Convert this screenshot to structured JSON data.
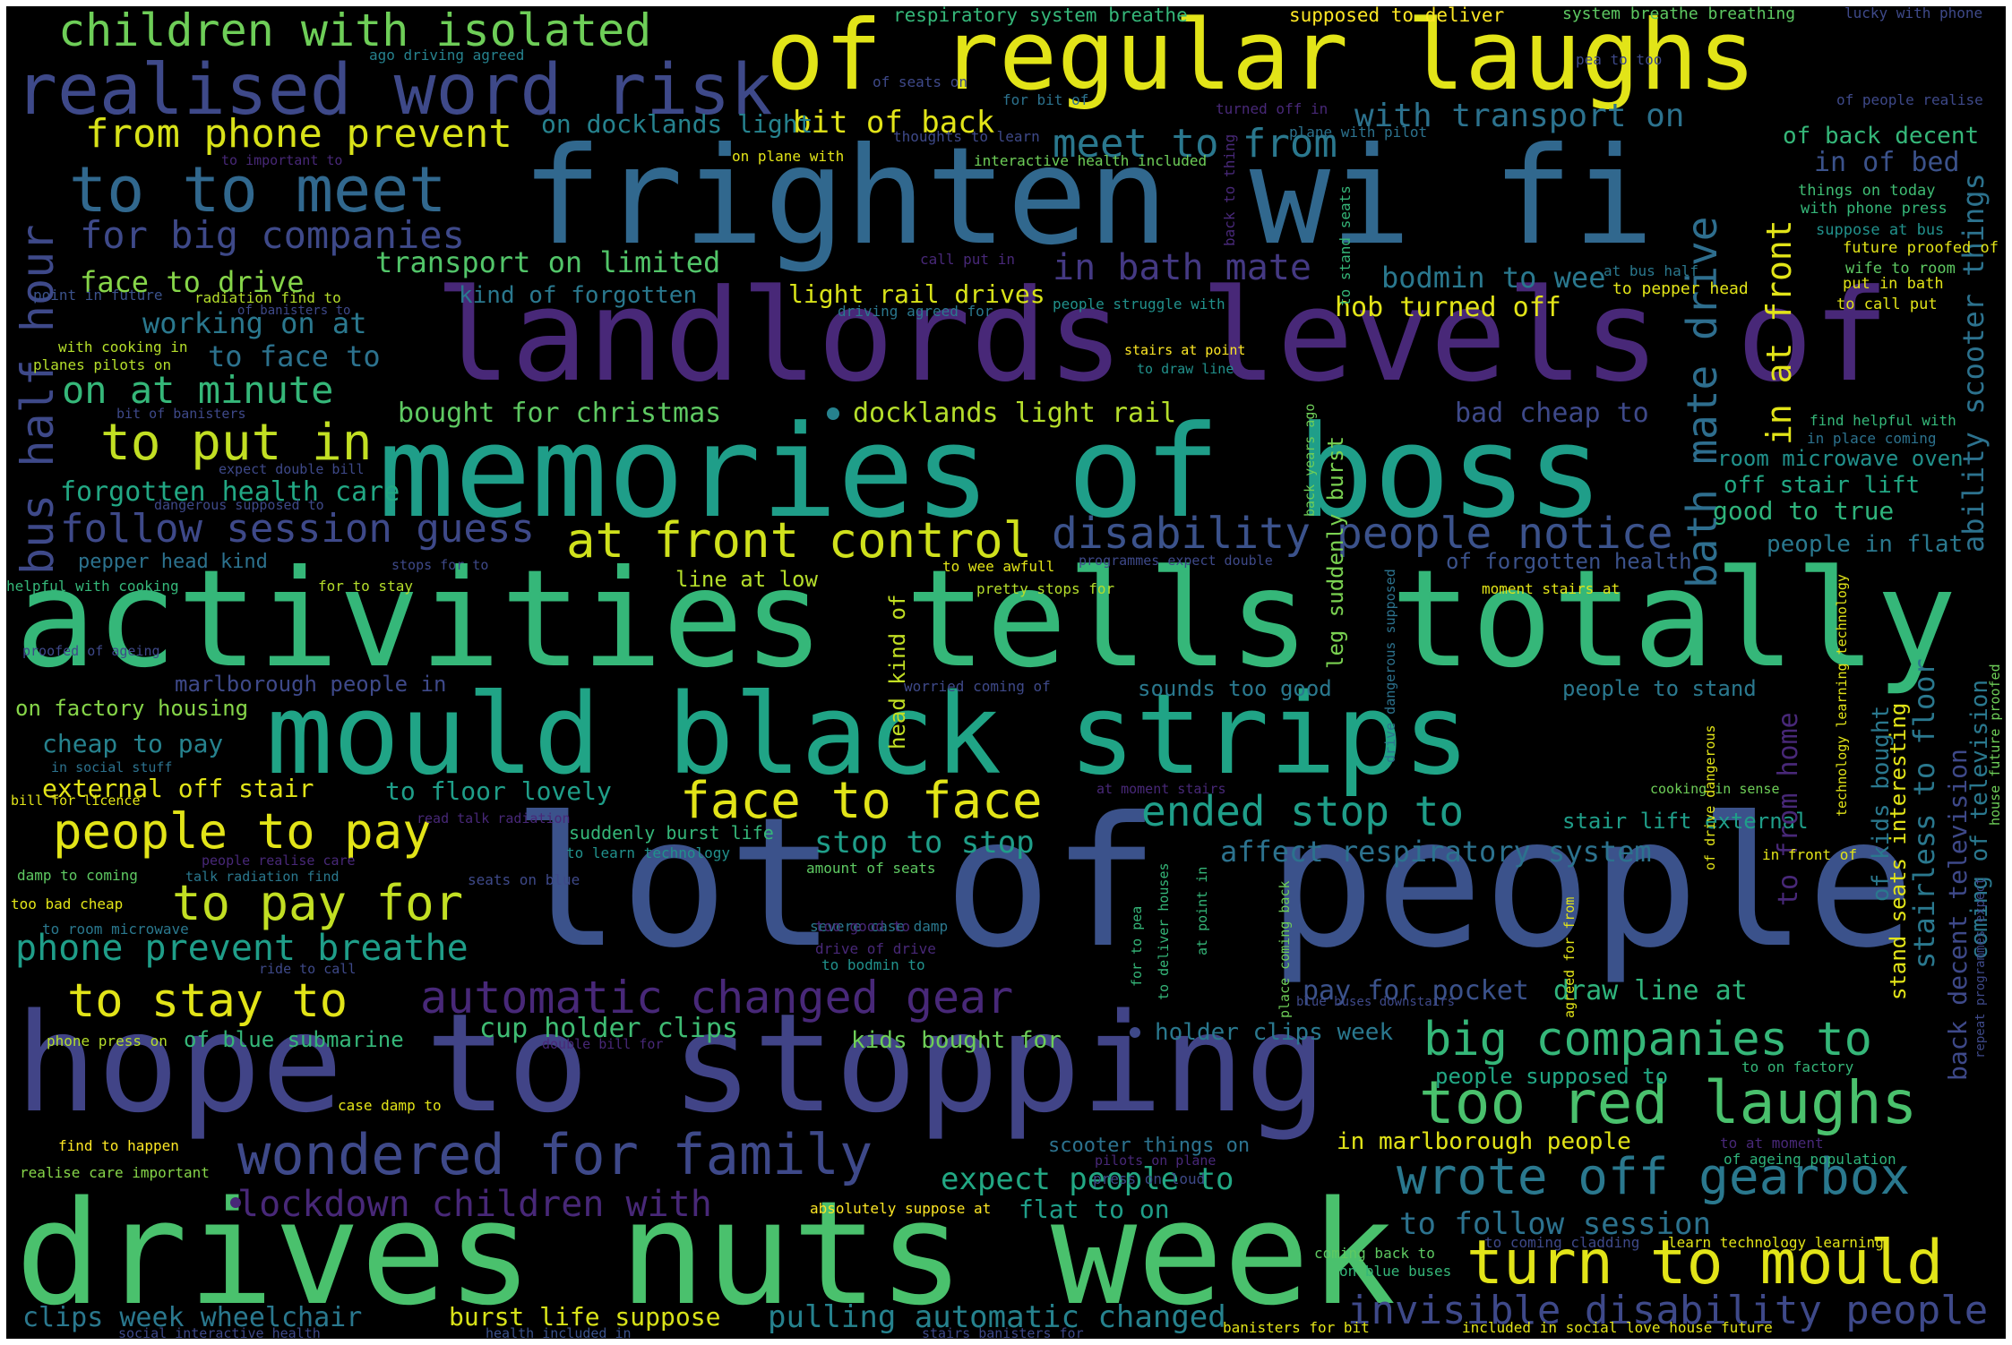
{
  "colors": {
    "background": "#000000",
    "frame": "#ffffff",
    "palette": [
      "#fde725",
      "#b5de2b",
      "#6ece58",
      "#35b779",
      "#1f9e89",
      "#26828e",
      "#31688e",
      "#3e4989",
      "#482878",
      "#440154"
    ]
  },
  "words": [
    "of regular laughs",
    "frighten wi fi",
    "landlords levels of",
    "memories of boss",
    "activities tells totally",
    "mould black strips",
    "lot of people",
    "hope to stopping",
    "drives nuts week",
    "realised word risk",
    "children with isolated",
    "to to meet",
    "from phone prevent",
    "for big companies",
    "face to drive",
    "working on at",
    "to face to",
    "on at minute",
    "to put in",
    "forgotten health care",
    "follow session guess",
    "at front control",
    "disability people notice",
    "bus half hour",
    "transport on limited",
    "kind of forgotten",
    "light rail drives",
    "in bath mate",
    "bodmin to wee",
    "hob turned off",
    "with transport on",
    "meet to from",
    "bit of back",
    "on docklands light",
    "bought for christmas",
    "docklands light rail",
    "bad cheap to",
    "bath mate drive",
    "in at front",
    "of back decent",
    "in of bed",
    "ability scooter things",
    "people in flat",
    "good to true",
    "off stair lift",
    "room microwave oven",
    "of forgotten health",
    "people to pay",
    "to pay for",
    "phone prevent breathe",
    "to stay to",
    "automatic changed gear",
    "face to face",
    "ended stop to",
    "stop to stop",
    "affect respiratory system",
    "big companies to",
    "too red laughs",
    "wrote off gearbox",
    "turn to mould",
    "invisible disability people",
    "wondered for family",
    "lockdown children with",
    "expect people to",
    "to follow session",
    "burst life suppose",
    "pulling automatic changed",
    "clips week wheelchair",
    "cup holder clips",
    "kids bought for",
    "holder clips week",
    "pay for pocket",
    "draw line at",
    "external off stair",
    "to floor lovely",
    "cheap to pay",
    "on factory housing",
    "marlborough people in",
    "sounds too good",
    "people to stand",
    "stair lift external",
    "to from home",
    "stairless to floor",
    "back decent television",
    "coming of television",
    "of kids bought",
    "stand seats interesting",
    "in marlborough people",
    "people supposed to",
    "flat to on",
    "scooter things on",
    "head kind of",
    "leg suddenly burst",
    "pepper head kind",
    "line at low",
    "of blue submarine",
    "suddenly burst life",
    "respiratory system breathe",
    "supposed to deliver",
    "system breathe breathing",
    "lucky with phone",
    "ago driving agreed",
    "pea to too",
    "of seats on",
    "for bit of",
    "turned off in",
    "of people realise",
    "to important to",
    "on plane with",
    "thoughts to learn",
    "plane with pilot",
    "interactive health included",
    "things on today",
    "with phone press",
    "suppose at bus",
    "future proofed of",
    "wife to room",
    "put in bath",
    "to call put",
    "at bus half",
    "to pepper head",
    "call put in",
    "point in future",
    "radiation find to",
    "of banisters to",
    "driving agreed for",
    "people struggle with",
    "with cooking in",
    "planes pilots on",
    "stairs at point",
    "to draw line",
    "bit of banisters",
    "find helpful with",
    "in place coming",
    "expect double bill",
    "dangerous supposed to",
    "stops for to",
    "programmes expect double",
    "to wee awfull",
    "pretty stops for",
    "moment stairs at",
    "helpful with cooking",
    "for to stay",
    "proofed of ageing",
    "worried coming of",
    "in social stuff",
    "bill for licence",
    "read talk radiation",
    "at moment stairs",
    "cooking in sense",
    "of drive dangerous",
    "technology learning technology",
    "people realise care",
    "talk radiation find",
    "to learn technology",
    "amount of seats",
    "damp to coming",
    "too bad cheap",
    "to room microwave",
    "seats on blue",
    "severe case damp",
    "too good to",
    "drive of drive",
    "ride to call",
    "to bodmin to",
    "in front of",
    "phone press on",
    "double bill for",
    "case damp to",
    "blue buses downstairs",
    "to on factory",
    "repeat programmes expect",
    "house future proofed",
    "find to happen",
    "realise care important",
    "pilots on plane",
    "to at moment",
    "of ageing population",
    "press on loud",
    "absolutely suppose at",
    "coming back to",
    "on blue buses",
    "to coming cladding",
    "learn technology learning",
    "social interactive health",
    "health included in",
    "stairs banisters for",
    "banisters for bit",
    "included in social love house future",
    "back to thing",
    "to stand seats",
    "back years ago",
    "drive dangerous supposed",
    "place coming back",
    "at point in",
    "agreed for from",
    "to deliver houses",
    "for to pea"
  ]
}
